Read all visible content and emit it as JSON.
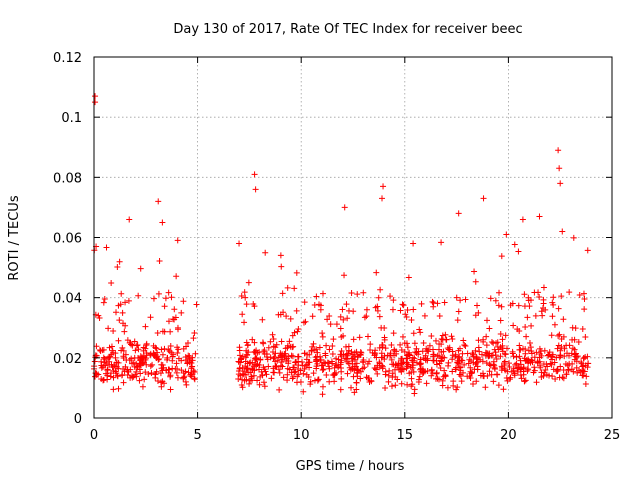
{
  "chart_data": {
    "type": "scatter",
    "title": "Day 130 of 2017, Rate Of TEC Index for receiver beec",
    "xlabel": "GPS time / hours",
    "ylabel": "ROTI / TECUs",
    "xlim": [
      0,
      25
    ],
    "ylim": [
      0,
      0.12
    ],
    "x_ticks": [
      0,
      5,
      10,
      15,
      20,
      25
    ],
    "x_tick_labels": [
      "0",
      "5",
      "10",
      "15",
      "20",
      "25"
    ],
    "y_ticks": [
      0,
      0.02,
      0.04,
      0.06,
      0.08,
      0.1,
      0.12
    ],
    "y_tick_labels": [
      "0",
      "0.02",
      "0.04",
      "0.06",
      "0.08",
      "0.1",
      "0.12"
    ],
    "grid": true,
    "marker": "plus",
    "series": [
      {
        "name": "ROTI",
        "color": "#ff0000",
        "segments": [
          {
            "x_start": 0.0,
            "x_end": 4.95
          },
          {
            "x_start": 6.95,
            "x_end": 23.85
          }
        ],
        "typical_range": [
          0.005,
          0.025
        ],
        "notable_points": [
          {
            "x": 0.05,
            "y": 0.107
          },
          {
            "x": 0.05,
            "y": 0.105
          },
          {
            "x": 0.1,
            "y": 0.057
          },
          {
            "x": 3.1,
            "y": 0.072
          },
          {
            "x": 3.3,
            "y": 0.065
          },
          {
            "x": 1.7,
            "y": 0.066
          },
          {
            "x": 7.75,
            "y": 0.081
          },
          {
            "x": 7.8,
            "y": 0.076
          },
          {
            "x": 7.0,
            "y": 0.058
          },
          {
            "x": 12.1,
            "y": 0.07
          },
          {
            "x": 13.95,
            "y": 0.077
          },
          {
            "x": 13.9,
            "y": 0.073
          },
          {
            "x": 15.4,
            "y": 0.058
          },
          {
            "x": 17.6,
            "y": 0.068
          },
          {
            "x": 18.8,
            "y": 0.073
          },
          {
            "x": 19.9,
            "y": 0.061
          },
          {
            "x": 20.7,
            "y": 0.066
          },
          {
            "x": 21.5,
            "y": 0.067
          },
          {
            "x": 22.4,
            "y": 0.089
          },
          {
            "x": 22.45,
            "y": 0.083
          },
          {
            "x": 22.5,
            "y": 0.078
          },
          {
            "x": 22.6,
            "y": 0.062
          }
        ]
      }
    ]
  }
}
